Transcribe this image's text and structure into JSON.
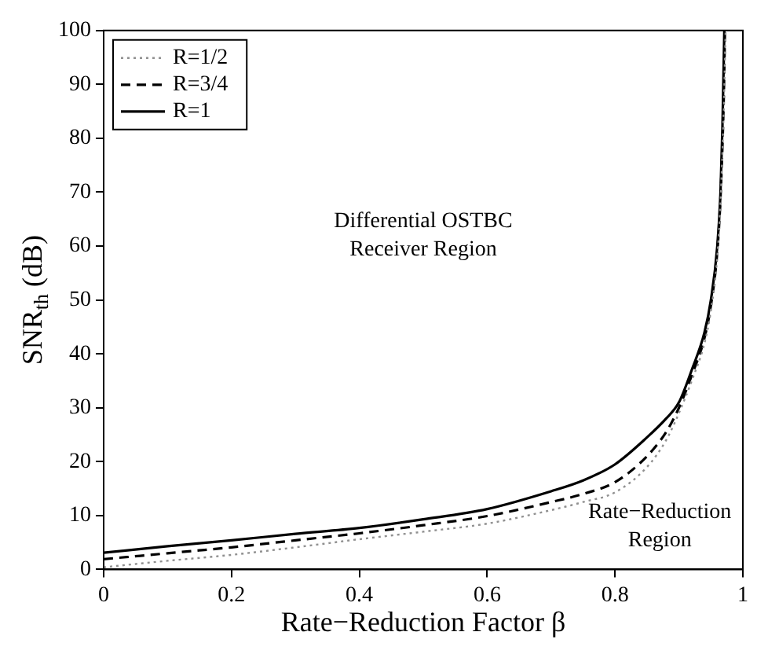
{
  "chart_data": {
    "type": "line",
    "xlabel": "Rate−Reduction Factor β",
    "ylabel": "SNR$_{th}$ (dB)",
    "xlim": [
      0,
      1
    ],
    "ylim": [
      0,
      100
    ],
    "xticks": [
      0,
      0.2,
      0.4,
      0.6,
      0.8,
      1
    ],
    "yticks": [
      0,
      10,
      20,
      30,
      40,
      50,
      60,
      70,
      80,
      90,
      100
    ],
    "grid": false,
    "legend": "top left",
    "marker": "none",
    "annotations": [
      "Differential OSTBC\nReceiver Region",
      "Rate−Reduction\nRegion"
    ],
    "series": [
      {
        "name": "R=1/2",
        "color": "#909090",
        "line_style": "dotted",
        "x": [
          0,
          0.1,
          0.2,
          0.3,
          0.4,
          0.5,
          0.6,
          0.7,
          0.75,
          0.8,
          0.85,
          0.88,
          0.9,
          0.92,
          0.94,
          0.95,
          0.96,
          0.965,
          0.97,
          0.973
        ],
        "values": [
          0.4,
          1.6,
          2.7,
          4.1,
          5.6,
          7,
          8.5,
          11,
          12.5,
          14.3,
          19,
          24,
          29,
          35,
          42,
          48,
          58,
          68,
          85,
          100
        ]
      },
      {
        "name": "R=3/4",
        "color": "#000000",
        "line_style": "dashed",
        "x": [
          0,
          0.1,
          0.2,
          0.3,
          0.4,
          0.5,
          0.6,
          0.7,
          0.75,
          0.8,
          0.85,
          0.88,
          0.9,
          0.92,
          0.94,
          0.95,
          0.96,
          0.965,
          0.97,
          0.972
        ],
        "values": [
          1.9,
          3,
          4.1,
          5.4,
          6.7,
          8.2,
          9.9,
          12.5,
          14,
          16.2,
          21,
          25.5,
          30,
          36,
          43,
          49,
          59,
          69,
          87,
          100
        ]
      },
      {
        "name": "R=1",
        "color": "#000000",
        "line_style": "solid",
        "x": [
          0,
          0.1,
          0.2,
          0.3,
          0.4,
          0.5,
          0.6,
          0.7,
          0.75,
          0.8,
          0.85,
          0.88,
          0.9,
          0.92,
          0.94,
          0.95,
          0.96,
          0.965,
          0.968,
          0.971
        ],
        "values": [
          3.1,
          4.3,
          5.4,
          6.6,
          7.7,
          9.3,
          11.2,
          14.5,
          16.5,
          19.5,
          24.5,
          28,
          31,
          37,
          44,
          50,
          60,
          70,
          82,
          100
        ]
      }
    ]
  }
}
